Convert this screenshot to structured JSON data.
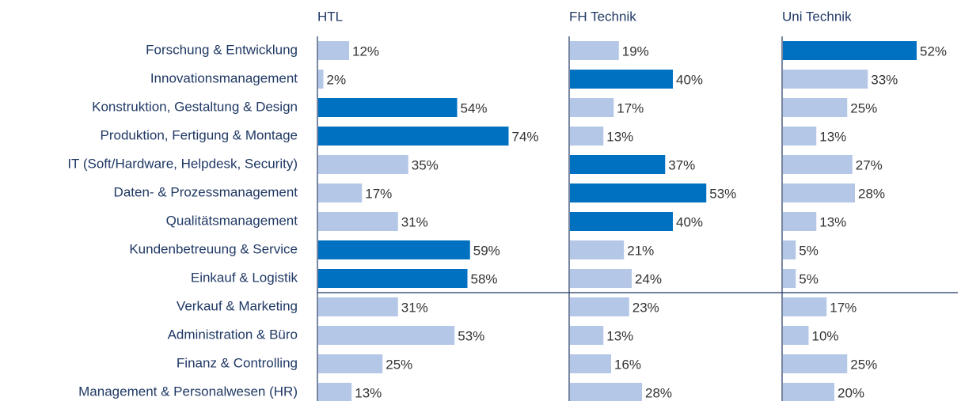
{
  "chart_data": {
    "type": "bar",
    "orientation": "horizontal",
    "categories": [
      "Forschung & Entwicklung",
      "Innovationsmanagement",
      "Konstruktion, Gestaltung & Design",
      "Produktion, Fertigung & Montage",
      "IT (Soft/Hardware, Helpdesk, Security)",
      "Daten- & Prozessmanagement",
      "Qualitätsmanagement",
      "Kundenbetreuung & Service",
      "Einkauf & Logistik",
      "Verkauf & Marketing",
      "Administration & Büro",
      "Finanz & Controlling",
      "Management & Personalwesen (HR)"
    ],
    "series": [
      {
        "name": "HTL",
        "values": [
          12,
          2,
          54,
          74,
          35,
          17,
          31,
          59,
          58,
          31,
          53,
          25,
          13
        ],
        "value_labels": [
          "12%",
          "2%",
          "54%",
          "74%",
          "35%",
          "17%",
          "31%",
          "59%",
          "58%",
          "31%",
          "53%",
          "25%",
          "13%"
        ],
        "colors": [
          "#b4c7e7",
          "#b4c7e7",
          "#0070c0",
          "#0070c0",
          "#b4c7e7",
          "#b4c7e7",
          "#b4c7e7",
          "#0070c0",
          "#0070c0",
          "#b4c7e7",
          "#b4c7e7",
          "#b4c7e7",
          "#b4c7e7"
        ]
      },
      {
        "name": "FH Technik",
        "values": [
          19,
          40,
          17,
          13,
          37,
          53,
          40,
          21,
          24,
          23,
          13,
          16,
          28
        ],
        "value_labels": [
          "19%",
          "40%",
          "17%",
          "13%",
          "37%",
          "53%",
          "40%",
          "21%",
          "24%",
          "23%",
          "13%",
          "16%",
          "28%"
        ],
        "colors": [
          "#b4c7e7",
          "#0070c0",
          "#b4c7e7",
          "#b4c7e7",
          "#0070c0",
          "#0070c0",
          "#0070c0",
          "#b4c7e7",
          "#b4c7e7",
          "#b4c7e7",
          "#b4c7e7",
          "#b4c7e7",
          "#b4c7e7"
        ]
      },
      {
        "name": "Uni Technik",
        "values": [
          52,
          33,
          25,
          13,
          27,
          28,
          13,
          5,
          5,
          17,
          10,
          25,
          20
        ],
        "value_labels": [
          "52%",
          "33%",
          "25%",
          "13%",
          "27%",
          "28%",
          "13%",
          "5%",
          "5%",
          "17%",
          "10%",
          "25%",
          "20%"
        ],
        "colors": [
          "#0070c0",
          "#b4c7e7",
          "#b4c7e7",
          "#b4c7e7",
          "#b4c7e7",
          "#b4c7e7",
          "#b4c7e7",
          "#b4c7e7",
          "#b4c7e7",
          "#b4c7e7",
          "#b4c7e7",
          "#b4c7e7",
          "#b4c7e7"
        ]
      }
    ]
  }
}
